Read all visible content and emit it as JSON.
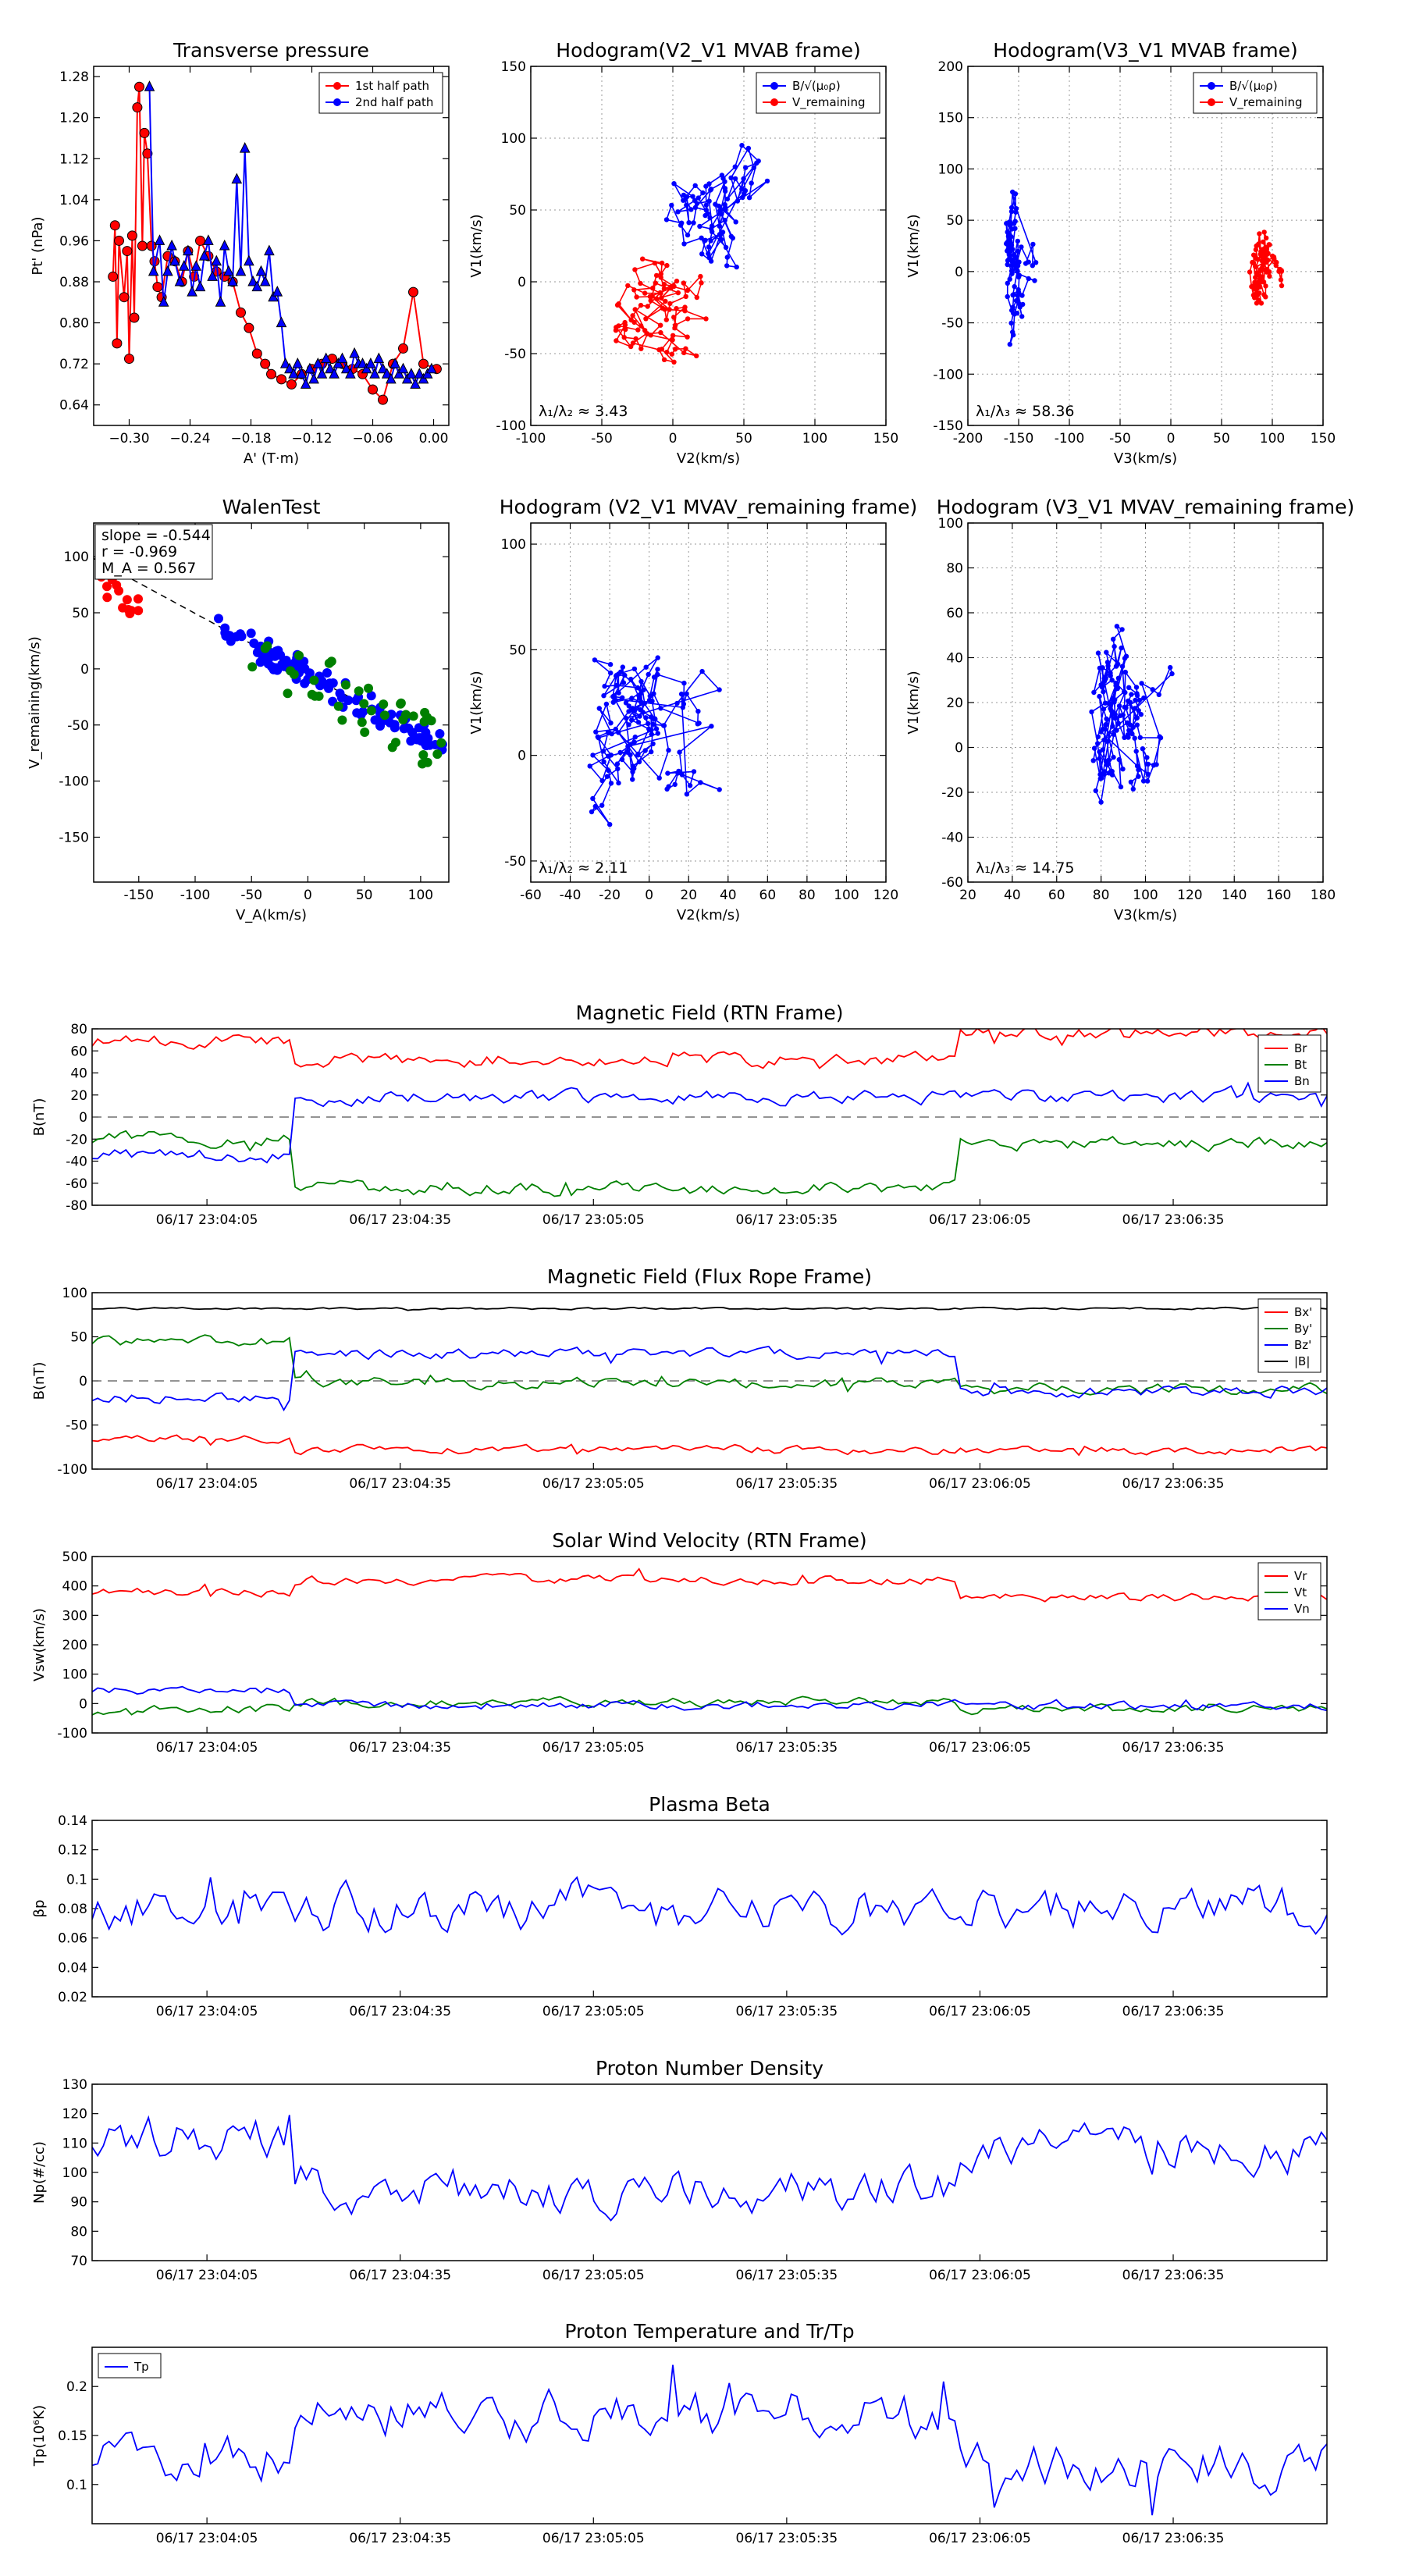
{
  "chart_data": [
    {
      "id": "transverse-pressure",
      "type": "line",
      "title": "Transverse pressure",
      "xlabel": "A' (T·m)",
      "ylabel": "Pt' (nPa)",
      "xlim": [
        -0.335,
        0.015
      ],
      "ylim": [
        0.6,
        1.3
      ],
      "xticks": [
        -0.3,
        -0.24,
        -0.18,
        -0.12,
        -0.06,
        0.0
      ],
      "xticklabels": [
        "−0.30",
        "−0.24",
        "−0.18",
        "−0.12",
        "−0.06",
        "0.00"
      ],
      "yticks": [
        0.64,
        0.72,
        0.8,
        0.88,
        0.96,
        1.04,
        1.12,
        1.2,
        1.28
      ],
      "yticklabels": [
        "0.64",
        "0.72",
        "0.80",
        "0.88",
        "0.96",
        "1.04",
        "1.12",
        "1.20",
        "1.28"
      ],
      "legend": {
        "position": "top-right",
        "entries": [
          "1st half path",
          "2nd half path"
        ]
      },
      "series": [
        {
          "name": "1st half path",
          "color": "#ff0000",
          "marker": "circle",
          "x": [
            -0.316,
            -0.314,
            -0.312,
            -0.31,
            -0.305,
            -0.302,
            -0.3,
            -0.297,
            -0.295,
            -0.292,
            -0.29,
            -0.287,
            -0.285,
            -0.282,
            -0.278,
            -0.275,
            -0.272,
            -0.268,
            -0.262,
            -0.255,
            -0.248,
            -0.242,
            -0.236,
            -0.23,
            -0.222,
            -0.214,
            -0.206,
            -0.198,
            -0.19,
            -0.182,
            -0.174,
            -0.166,
            -0.16,
            -0.15,
            -0.14,
            -0.13,
            -0.12,
            -0.11,
            -0.1,
            -0.09,
            -0.08,
            -0.07,
            -0.06,
            -0.05,
            -0.04,
            -0.03,
            -0.02,
            -0.01,
            0.003
          ],
          "y": [
            0.89,
            0.99,
            0.76,
            0.96,
            0.85,
            0.94,
            0.73,
            0.97,
            0.81,
            1.22,
            1.26,
            0.95,
            1.17,
            1.13,
            0.95,
            0.92,
            0.87,
            0.85,
            0.93,
            0.92,
            0.88,
            0.94,
            0.89,
            0.96,
            0.93,
            0.9,
            0.89,
            0.88,
            0.82,
            0.79,
            0.74,
            0.72,
            0.7,
            0.69,
            0.68,
            0.7,
            0.71,
            0.72,
            0.73,
            0.72,
            0.71,
            0.7,
            0.67,
            0.65,
            0.72,
            0.75,
            0.86,
            0.72,
            0.71
          ]
        },
        {
          "name": "2nd half path",
          "color": "#0000ff",
          "marker": "triangle",
          "x": [
            -0.28,
            -0.276,
            -0.27,
            -0.266,
            -0.262,
            -0.258,
            -0.255,
            -0.25,
            -0.246,
            -0.242,
            -0.238,
            -0.234,
            -0.23,
            -0.226,
            -0.222,
            -0.218,
            -0.214,
            -0.21,
            -0.206,
            -0.202,
            -0.198,
            -0.194,
            -0.19,
            -0.186,
            -0.182,
            -0.178,
            -0.174,
            -0.17,
            -0.166,
            -0.162,
            -0.158,
            -0.154,
            -0.15,
            -0.146,
            -0.142,
            -0.138,
            -0.134,
            -0.13,
            -0.126,
            -0.122,
            -0.118,
            -0.114,
            -0.11,
            -0.106,
            -0.102,
            -0.098,
            -0.094,
            -0.09,
            -0.086,
            -0.082,
            -0.078,
            -0.074,
            -0.07,
            -0.066,
            -0.062,
            -0.058,
            -0.054,
            -0.05,
            -0.046,
            -0.042,
            -0.038,
            -0.034,
            -0.03,
            -0.026,
            -0.022,
            -0.018,
            -0.014,
            -0.01,
            -0.006,
            -0.002
          ],
          "y": [
            1.26,
            0.9,
            0.96,
            0.84,
            0.9,
            0.95,
            0.92,
            0.88,
            0.91,
            0.94,
            0.86,
            0.91,
            0.87,
            0.93,
            0.96,
            0.89,
            0.92,
            0.84,
            0.95,
            0.9,
            0.88,
            1.08,
            0.9,
            1.14,
            0.92,
            0.88,
            0.87,
            0.9,
            0.88,
            0.94,
            0.85,
            0.86,
            0.8,
            0.72,
            0.71,
            0.7,
            0.72,
            0.7,
            0.68,
            0.71,
            0.69,
            0.72,
            0.7,
            0.73,
            0.71,
            0.7,
            0.72,
            0.73,
            0.71,
            0.7,
            0.74,
            0.72,
            0.72,
            0.71,
            0.72,
            0.7,
            0.73,
            0.71,
            0.7,
            0.69,
            0.72,
            0.7,
            0.71,
            0.69,
            0.7,
            0.68,
            0.7,
            0.69,
            0.7,
            0.71
          ]
        }
      ]
    },
    {
      "id": "hodogram-v2-v1-mvab",
      "type": "line",
      "title": "Hodogram(V2_V1 MVAB frame)",
      "xlabel": "V2(km/s)",
      "ylabel": "V1(km/s)",
      "xlim": [
        -100,
        150
      ],
      "ylim": [
        -100,
        150
      ],
      "xticks": [
        -100,
        -50,
        0,
        50,
        100,
        150
      ],
      "yticks": [
        -100,
        -50,
        0,
        50,
        100,
        150
      ],
      "legend": {
        "position": "top-right",
        "entries": [
          "B/√(μ₀ρ)",
          "V_remaining"
        ]
      },
      "annotation": "λ₁/λ₂ ≈ 3.43",
      "series": [
        {
          "name": "B/√(μ₀ρ)",
          "color": "#0000ff",
          "center": [
            20,
            50
          ],
          "spread": [
            28,
            55
          ],
          "count": 90
        },
        {
          "name": "V_remaining",
          "color": "#ff0000",
          "center": [
            -5,
            -10
          ],
          "spread": [
            40,
            40
          ],
          "count": 90
        }
      ]
    },
    {
      "id": "hodogram-v3-v1-mvab",
      "type": "line",
      "title": "Hodogram(V3_V1 MVAB frame)",
      "xlabel": "V3(km/s)",
      "ylabel": "V1(km/s)",
      "xlim": [
        -200,
        150
      ],
      "ylim": [
        -150,
        200
      ],
      "xticks": [
        -200,
        -150,
        -100,
        -50,
        0,
        50,
        100,
        150
      ],
      "yticks": [
        -150,
        -100,
        -50,
        0,
        50,
        100,
        150,
        200
      ],
      "legend": {
        "position": "top-right",
        "entries": [
          "B/√(μ₀ρ)",
          "V_remaining"
        ]
      },
      "annotation": "λ₁/λ₃ ≈ 58.36",
      "series": [
        {
          "name": "B/√(μ₀ρ)",
          "color": "#0000ff",
          "center": [
            -155,
            30
          ],
          "spread": [
            12,
            65
          ],
          "count": 90
        },
        {
          "name": "V_remaining",
          "color": "#ff0000",
          "center": [
            92,
            -5
          ],
          "spread": [
            12,
            45
          ],
          "count": 90
        }
      ]
    },
    {
      "id": "walen-test",
      "type": "scatter",
      "title": "WalenTest",
      "xlabel": "V_A(km/s)",
      "ylabel": "V_remaining(km/s)",
      "xlim": [
        -190,
        125
      ],
      "ylim": [
        -190,
        130
      ],
      "xticks": [
        -150,
        -100,
        -50,
        0,
        50,
        100
      ],
      "yticks": [
        -150,
        -100,
        -50,
        0,
        50,
        100
      ],
      "annotation": [
        "slope = -0.544",
        "r = -0.969",
        "M_A = 0.567"
      ],
      "fit_line": {
        "slope": -0.544,
        "intercept": -5
      },
      "series": [
        {
          "name": "red",
          "color": "#ff0000",
          "x_range": [
            -185,
            -145
          ],
          "count": 15
        },
        {
          "name": "blue",
          "color": "#0000ff",
          "x_range": [
            -80,
            120
          ],
          "count": 110
        },
        {
          "name": "green",
          "color": "#008000",
          "x_range": [
            -50,
            120
          ],
          "count": 40
        }
      ]
    },
    {
      "id": "hodogram-v2-v1-mvav",
      "type": "line",
      "title": "Hodogram (V2_V1 MVAV_remaining frame)",
      "xlabel": "V2(km/s)",
      "ylabel": "V1(km/s)",
      "xlim": [
        -60,
        120
      ],
      "ylim": [
        -60,
        110
      ],
      "xticks": [
        -60,
        -40,
        -20,
        0,
        20,
        40,
        60,
        80,
        100,
        120
      ],
      "yticks": [
        -50,
        0,
        50,
        100
      ],
      "annotation": "λ₁/λ₂ ≈ 2.11",
      "series": [
        {
          "name": "V",
          "color": "#0000ff",
          "center": [
            -15,
            10
          ],
          "spread": [
            25,
            40
          ],
          "count": 140
        }
      ]
    },
    {
      "id": "hodogram-v3-v1-mvav",
      "type": "line",
      "title": "Hodogram (V3_V1 MVAV_remaining frame)",
      "xlabel": "V3(km/s)",
      "ylabel": "V1(km/s)",
      "xlim": [
        20,
        180
      ],
      "ylim": [
        -60,
        100
      ],
      "xticks": [
        20,
        40,
        60,
        80,
        100,
        120,
        140,
        160,
        180
      ],
      "yticks": [
        -60,
        -40,
        -20,
        0,
        20,
        40,
        60,
        80,
        100
      ],
      "annotation": "λ₁/λ₃ ≈ 14.75",
      "series": [
        {
          "name": "V",
          "color": "#0000ff",
          "center": [
            90,
            15
          ],
          "spread": [
            12,
            45
          ],
          "count": 140
        }
      ]
    },
    {
      "id": "magnetic-field-rtn",
      "type": "line",
      "title": "Magnetic Field (RTN Frame)",
      "ylabel": "B(nT)",
      "ylim": [
        -80,
        80
      ],
      "yticks": [
        -80,
        -60,
        -40,
        -20,
        0,
        20,
        40,
        60,
        80
      ],
      "xticklabels": [
        "06/17 23:04:05",
        "06/17 23:04:35",
        "06/17 23:05:05",
        "06/17 23:05:35",
        "06/17 23:06:05",
        "06/17 23:06:35"
      ],
      "zero_line": true,
      "legend": {
        "position": "top-right",
        "entries": [
          "Br",
          "Bt",
          "Bn"
        ]
      },
      "series": [
        {
          "name": "Br",
          "color": "#ff0000",
          "segments": [
            [
              0,
              0.16,
              68
            ],
            [
              0.16,
              0.7,
              52
            ],
            [
              0.7,
              1.0,
              76
            ]
          ],
          "noise": 5
        },
        {
          "name": "Bt",
          "color": "#008000",
          "segments": [
            [
              0,
              0.16,
              -20
            ],
            [
              0.16,
              0.7,
              -65
            ],
            [
              0.7,
              1.0,
              -25
            ]
          ],
          "noise": 5
        },
        {
          "name": "Bn",
          "color": "#0000ff",
          "segments": [
            [
              0,
              0.16,
              -35
            ],
            [
              0.16,
              0.7,
              18
            ],
            [
              0.7,
              1.0,
              18
            ]
          ],
          "noise": 5
        }
      ]
    },
    {
      "id": "magnetic-field-flux-rope",
      "type": "line",
      "title": "Magnetic Field (Flux Rope Frame)",
      "ylabel": "B(nT)",
      "ylim": [
        -100,
        100
      ],
      "yticks": [
        -100,
        -50,
        0,
        50,
        100
      ],
      "xticklabels": [
        "06/17 23:04:05",
        "06/17 23:04:35",
        "06/17 23:05:05",
        "06/17 23:05:35",
        "06/17 23:06:05",
        "06/17 23:06:35"
      ],
      "zero_line": true,
      "legend": {
        "position": "top-right",
        "entries": [
          "Bx'",
          "By'",
          "Bz'",
          "|B|"
        ]
      },
      "series": [
        {
          "name": "Bx'",
          "color": "#ff0000",
          "segments": [
            [
              0,
              0.16,
              -65
            ],
            [
              0.16,
              0.7,
              -78
            ],
            [
              0.7,
              1.0,
              -78
            ]
          ],
          "noise": 4
        },
        {
          "name": "By'",
          "color": "#008000",
          "segments": [
            [
              0,
              0.16,
              45
            ],
            [
              0.16,
              0.7,
              -2
            ],
            [
              0.7,
              1.0,
              -10
            ]
          ],
          "noise": 5
        },
        {
          "name": "Bz'",
          "color": "#0000ff",
          "segments": [
            [
              0,
              0.16,
              -20
            ],
            [
              0.16,
              0.7,
              30
            ],
            [
              0.7,
              1.0,
              -12
            ]
          ],
          "noise": 5
        },
        {
          "name": "|B|",
          "color": "#000000",
          "segments": [
            [
              0,
              1.0,
              82
            ]
          ],
          "noise": 1
        }
      ]
    },
    {
      "id": "solar-wind-velocity",
      "type": "line",
      "title": "Solar Wind Velocity (RTN Frame)",
      "ylabel": "Vsw(km/s)",
      "ylim": [
        -100,
        500
      ],
      "yticks": [
        -100,
        0,
        100,
        200,
        300,
        400,
        500
      ],
      "xticklabels": [
        "06/17 23:04:05",
        "06/17 23:04:35",
        "06/17 23:05:05",
        "06/17 23:05:35",
        "06/17 23:06:05",
        "06/17 23:06:35"
      ],
      "legend": {
        "position": "top-right",
        "entries": [
          "Vr",
          "Vt",
          "Vn"
        ]
      },
      "series": [
        {
          "name": "Vr",
          "color": "#ff0000",
          "segments": [
            [
              0,
              0.16,
              380
            ],
            [
              0.16,
              0.7,
              420
            ],
            [
              0.7,
              1.0,
              362
            ]
          ],
          "noise": 12
        },
        {
          "name": "Vt",
          "color": "#008000",
          "segments": [
            [
              0,
              0.16,
              -20
            ],
            [
              0.16,
              0.7,
              5
            ],
            [
              0.7,
              1.0,
              -20
            ]
          ],
          "noise": 12
        },
        {
          "name": "Vn",
          "color": "#0000ff",
          "segments": [
            [
              0,
              0.16,
              45
            ],
            [
              0.16,
              0.7,
              -5
            ],
            [
              0.7,
              1.0,
              -10
            ]
          ],
          "noise": 12
        }
      ]
    },
    {
      "id": "plasma-beta",
      "type": "line",
      "title": "Plasma Beta",
      "ylabel": "βp",
      "ylim": [
        0.02,
        0.14
      ],
      "yticks": [
        0.02,
        0.04,
        0.06,
        0.08,
        0.1,
        0.12,
        0.14
      ],
      "xticklabels": [
        "06/17 23:04:05",
        "06/17 23:04:35",
        "06/17 23:05:05",
        "06/17 23:05:35",
        "06/17 23:06:05",
        "06/17 23:06:35"
      ],
      "series": [
        {
          "name": "beta",
          "color": "#0000ff",
          "segments": [
            [
              0,
              1.0,
              0.08
            ]
          ],
          "noise": 0.012
        }
      ]
    },
    {
      "id": "proton-number-density",
      "type": "line",
      "title": "Proton Number Density",
      "ylabel": "Np(#/cc)",
      "ylim": [
        70,
        130
      ],
      "yticks": [
        70,
        80,
        90,
        100,
        110,
        120,
        130
      ],
      "xticklabels": [
        "06/17 23:04:05",
        "06/17 23:04:35",
        "06/17 23:05:05",
        "06/17 23:05:35",
        "06/17 23:06:05",
        "06/17 23:06:35"
      ],
      "series": [
        {
          "name": "Np",
          "color": "#0000ff",
          "segments": [
            [
              0,
              0.16,
              112
            ],
            [
              0.16,
              0.7,
              94
            ],
            [
              0.7,
              1.0,
              108
            ]
          ],
          "noise": 6
        }
      ]
    },
    {
      "id": "proton-temperature",
      "type": "line",
      "title": "Proton Temperature and Tr/Tp",
      "ylabel": "Tp(10⁶K)",
      "ylim": [
        0.06,
        0.24
      ],
      "yticks": [
        0.1,
        0.15,
        0.2
      ],
      "xticklabels": [
        "06/17 23:04:05",
        "06/17 23:04:35",
        "06/17 23:05:05",
        "06/17 23:05:35",
        "06/17 23:06:05",
        "06/17 23:06:35"
      ],
      "legend": {
        "position": "top-left",
        "entries": [
          "Tp"
        ]
      },
      "series": [
        {
          "name": "Tp",
          "color": "#0000ff",
          "segments": [
            [
              0,
              0.16,
              0.13
            ],
            [
              0.16,
              0.7,
              0.17
            ],
            [
              0.7,
              1.0,
              0.12
            ]
          ],
          "noise": 0.02
        }
      ]
    }
  ]
}
